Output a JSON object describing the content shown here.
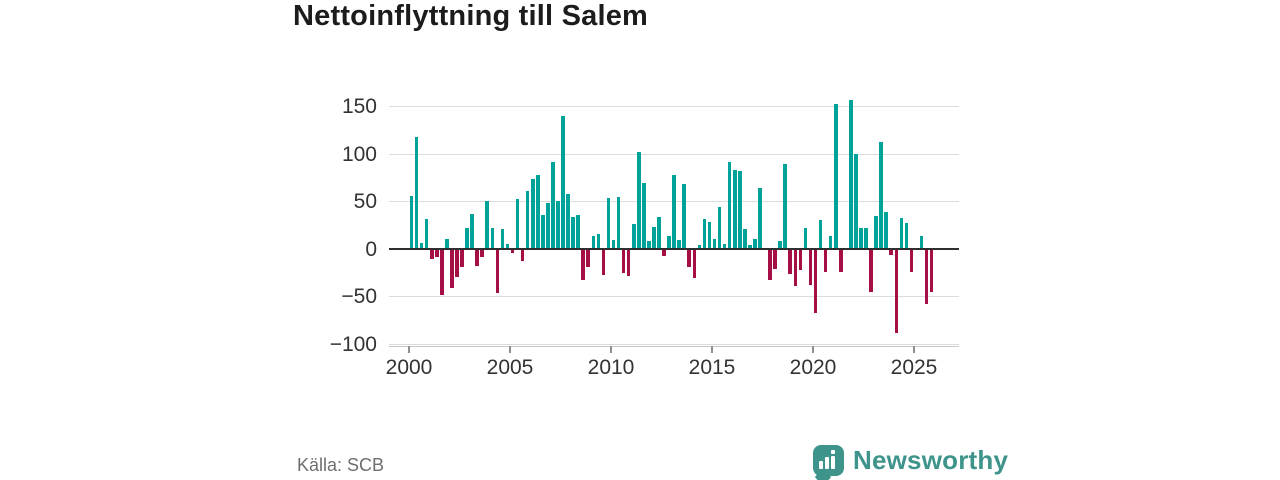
{
  "title": "Nettoinflyttning till Salem",
  "source": "Källa: SCB",
  "logo": {
    "text": "Newsworthy",
    "icon": "newsworthy-speech-bubble-barchart-icon"
  },
  "colors": {
    "positive_bar": "#00a39a",
    "negative_bar": "#a60e46",
    "zero_axis": "#2f2f2f",
    "gridline": "#dcdcdc",
    "axis_labels": "#333333",
    "title_text": "#1c1c1c",
    "source_text": "#6e6e6e",
    "logo_teal": "#3e948b"
  },
  "chart_data": {
    "type": "bar",
    "title": "Nettoinflyttning till Salem",
    "xlabel": "",
    "ylabel": "",
    "ylim": [
      -110,
      165
    ],
    "grid": true,
    "legend": false,
    "y_gridline_values": [
      150,
      100,
      50,
      0,
      -50,
      -100
    ],
    "y_tick_labels": [
      "150",
      "100",
      "50",
      "0",
      "−50",
      "−100"
    ],
    "x_tick_labels": [
      "2000",
      "2005",
      "2010",
      "2015",
      "2020",
      "2025"
    ],
    "frequency": "quarterly",
    "years": [
      {
        "year": 2000,
        "values": [
          55,
          117,
          6,
          31
        ]
      },
      {
        "year": 2001,
        "values": [
          -10,
          -8,
          -48,
          10
        ]
      },
      {
        "year": 2002,
        "values": [
          -41,
          -29,
          -18,
          22
        ]
      },
      {
        "year": 2003,
        "values": [
          36,
          -17,
          -8,
          50
        ]
      },
      {
        "year": 2004,
        "values": [
          22,
          -46,
          21,
          5
        ]
      },
      {
        "year": 2005,
        "values": [
          -4,
          52,
          -12,
          61
        ]
      },
      {
        "year": 2006,
        "values": [
          73,
          77,
          35,
          48
        ]
      },
      {
        "year": 2007,
        "values": [
          91,
          50,
          139,
          57
        ]
      },
      {
        "year": 2008,
        "values": [
          33,
          35,
          -32,
          -18
        ]
      },
      {
        "year": 2009,
        "values": [
          13,
          15,
          -27,
          53
        ]
      },
      {
        "year": 2010,
        "values": [
          9,
          54,
          -25,
          -28
        ]
      },
      {
        "year": 2011,
        "values": [
          26,
          102,
          69,
          8
        ]
      },
      {
        "year": 2012,
        "values": [
          23,
          33,
          -7,
          13
        ]
      },
      {
        "year": 2013,
        "values": [
          77,
          9,
          68,
          -18
        ]
      },
      {
        "year": 2014,
        "values": [
          -30,
          4,
          31,
          28
        ]
      },
      {
        "year": 2015,
        "values": [
          10,
          44,
          5,
          91
        ]
      },
      {
        "year": 2016,
        "values": [
          83,
          82,
          21,
          4
        ]
      },
      {
        "year": 2017,
        "values": [
          10,
          64,
          0,
          -32
        ]
      },
      {
        "year": 2018,
        "values": [
          -20,
          8,
          89,
          -26
        ]
      },
      {
        "year": 2019,
        "values": [
          -38,
          -22,
          22,
          -37
        ]
      },
      {
        "year": 2020,
        "values": [
          -67,
          30,
          -24,
          13
        ]
      },
      {
        "year": 2021,
        "values": [
          152,
          -24,
          0,
          156
        ]
      },
      {
        "year": 2022,
        "values": [
          100,
          22,
          22,
          -45
        ]
      },
      {
        "year": 2023,
        "values": [
          34,
          112,
          38,
          -6
        ]
      },
      {
        "year": 2024,
        "values": [
          -88,
          32,
          27,
          -24
        ]
      },
      {
        "year": 2025,
        "values": [
          0,
          13,
          -57,
          -45
        ]
      }
    ]
  }
}
